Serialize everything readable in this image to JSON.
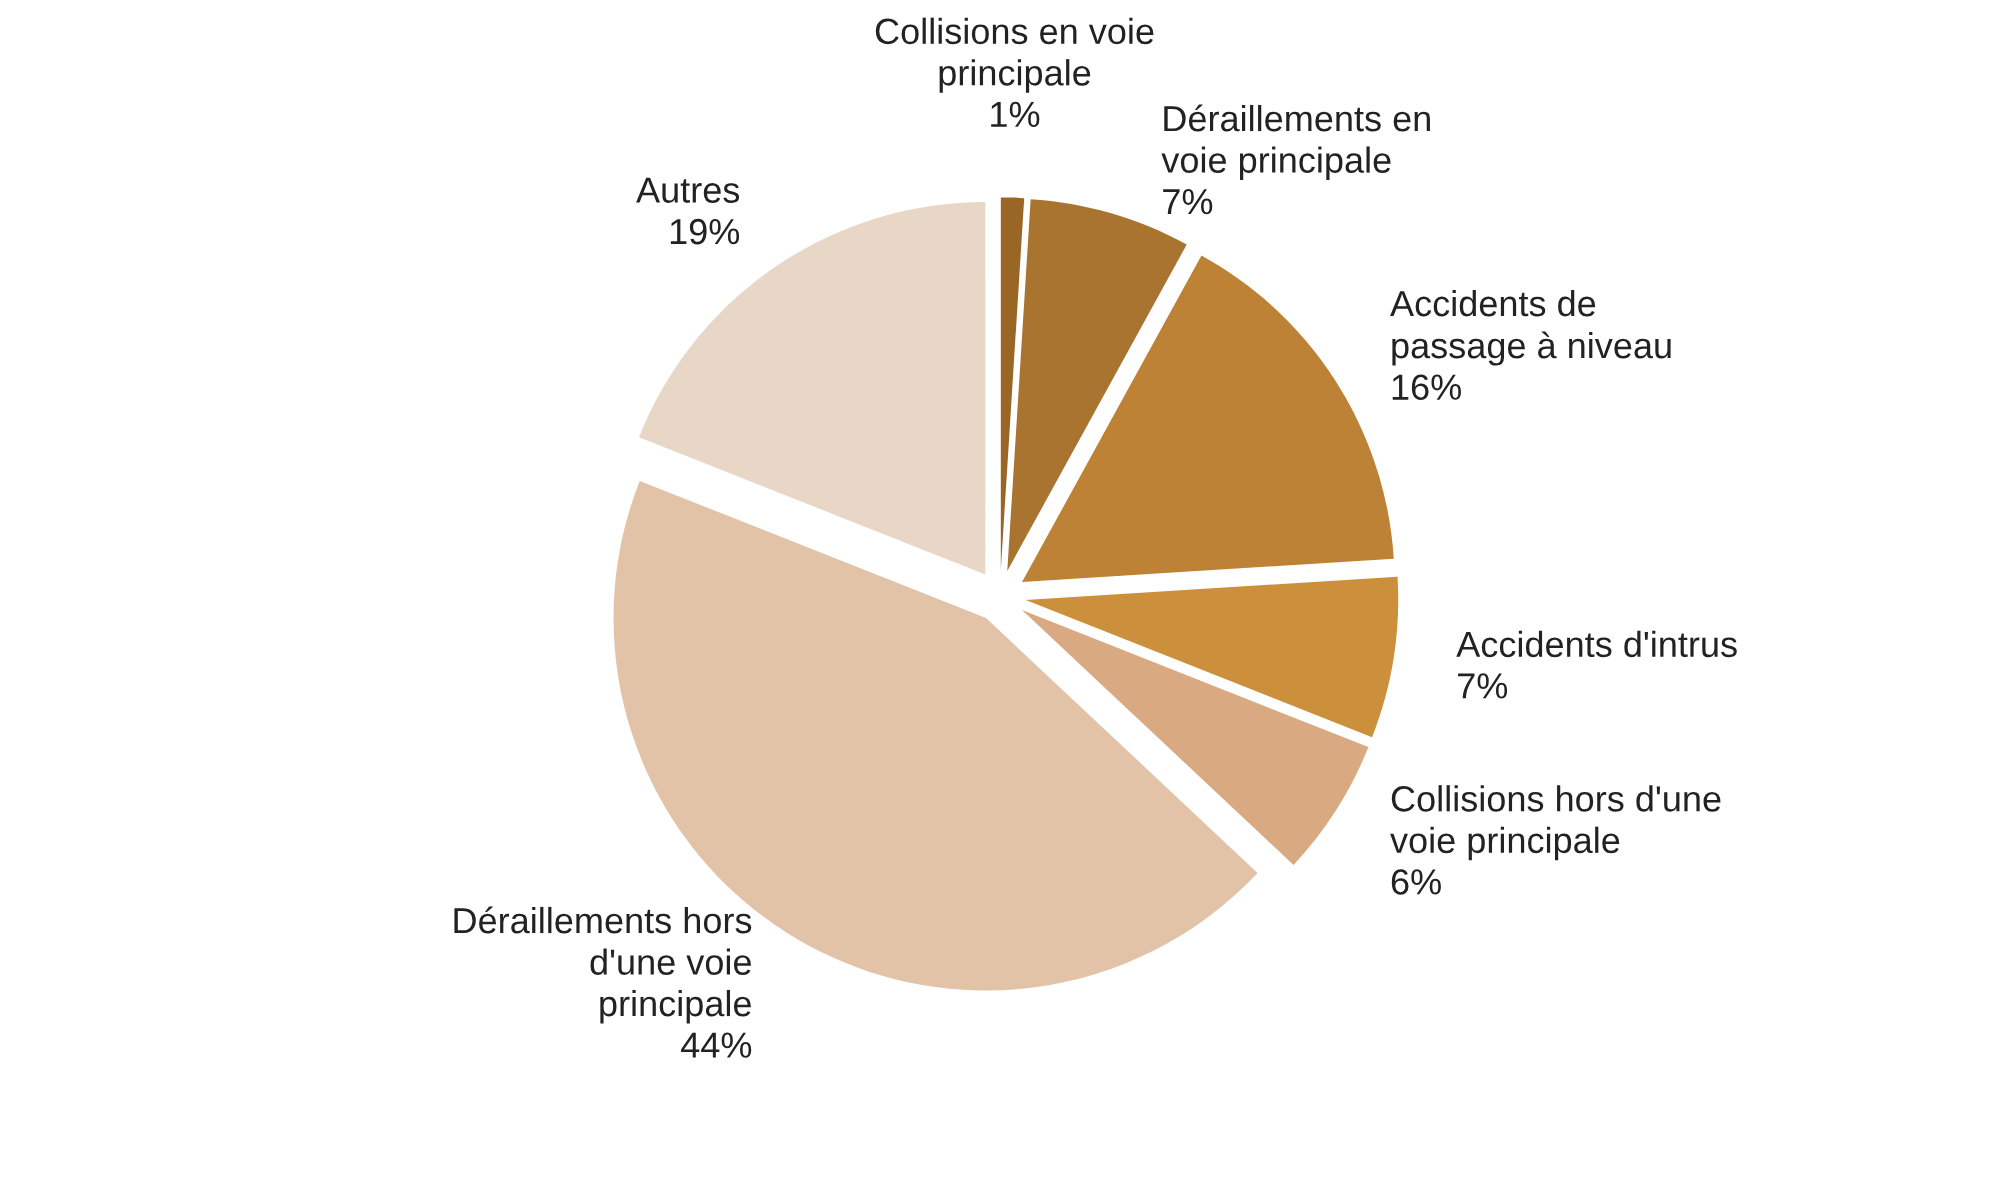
{
  "chart_data": {
    "type": "pie",
    "categories": [
      "Collisions en voie\nprincipale",
      "Déraillements en\nvoie principale",
      "Accidents de\npassage à niveau",
      "Accidents d'intrus",
      "Collisions hors d'une\nvoie principale",
      "Déraillements hors\nd'une voie\nprincipale",
      "Autres"
    ],
    "values": [
      1,
      7,
      16,
      7,
      6,
      44,
      19
    ],
    "value_labels": [
      "1%",
      "7%",
      "16%",
      "7%",
      "6%",
      "44%",
      "19%"
    ],
    "colors": [
      "#9a6626",
      "#a8742f",
      "#bd8235",
      "#cc8f3c",
      "#d9a981",
      "#e2c3a8",
      "#e8d6c6"
    ]
  }
}
